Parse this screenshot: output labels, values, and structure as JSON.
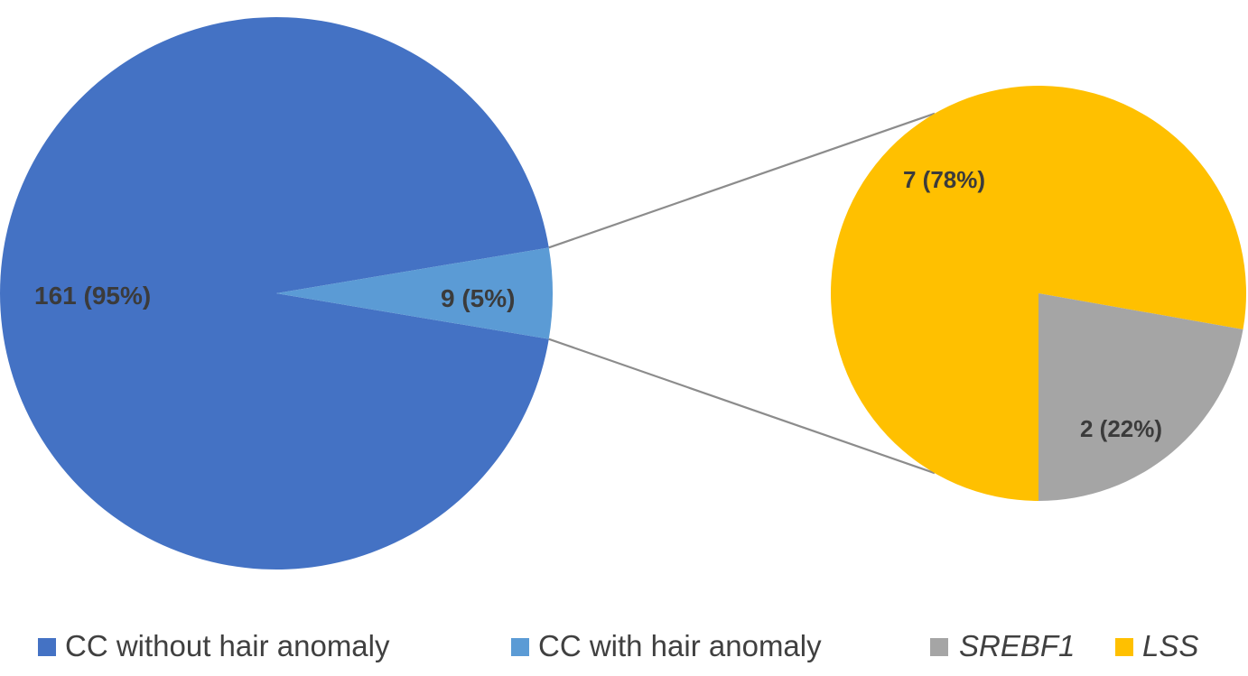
{
  "chart_data": {
    "type": "pie",
    "title": "",
    "main_pie": {
      "slices": [
        {
          "name": "CC without hair anomaly",
          "value": 161,
          "percent": 95,
          "label": "161 (95%)",
          "color": "#4472c4"
        },
        {
          "name": "CC with hair anomaly",
          "value": 9,
          "percent": 5,
          "label": "9 (5%)",
          "color": "#5b9bd5",
          "exploded": true
        }
      ]
    },
    "secondary_pie": {
      "breakdown_of": "CC with hair anomaly",
      "slices": [
        {
          "name": "LSS",
          "value": 7,
          "percent": 78,
          "label": "7 (78%)",
          "color": "#ffc000"
        },
        {
          "name": "SREBF1",
          "value": 2,
          "percent": 22,
          "label": "2 (22%)",
          "color": "#a5a5a5"
        }
      ]
    },
    "legend": {
      "position": "bottom",
      "entries": [
        {
          "label": "CC without hair anomaly",
          "color": "#4472c4",
          "italic": false
        },
        {
          "label": "CC with hair anomaly",
          "color": "#5b9bd5",
          "italic": false
        },
        {
          "label": "SREBF1",
          "color": "#a5a5a5",
          "italic": true
        },
        {
          "label": "LSS",
          "color": "#ffc000",
          "italic": true
        }
      ]
    },
    "connector_color": "#8c8c8c"
  }
}
